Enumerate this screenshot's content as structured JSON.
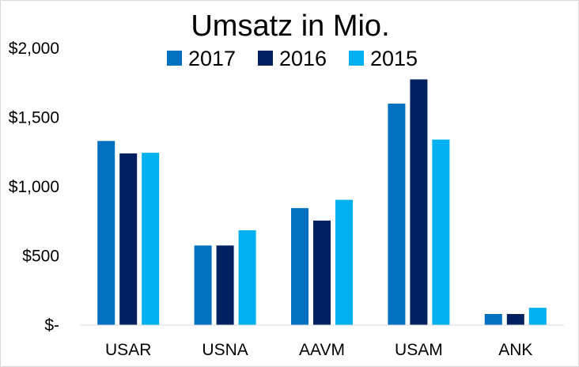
{
  "chart_data": {
    "type": "bar",
    "title": "Umsatz in Mio.",
    "xlabel": "",
    "ylabel": "",
    "categories": [
      "USAR",
      "USNA",
      "AAVM",
      "USAM",
      "ANK"
    ],
    "series": [
      {
        "name": "2017",
        "color": "#0070c0",
        "values": [
          1330,
          575,
          845,
          1600,
          80
        ]
      },
      {
        "name": "2016",
        "color": "#002060",
        "values": [
          1240,
          575,
          755,
          1775,
          80
        ]
      },
      {
        "name": "2015",
        "color": "#00b0f0",
        "values": [
          1245,
          685,
          905,
          1340,
          125
        ]
      }
    ],
    "ylim": [
      0,
      2000
    ],
    "yticks": [
      0,
      500,
      1000,
      1500,
      2000
    ],
    "ytick_labels": [
      "$-",
      "$500",
      "$1,000",
      "$1,500",
      "$2,000"
    ],
    "grid": false,
    "legend_position": "top"
  }
}
